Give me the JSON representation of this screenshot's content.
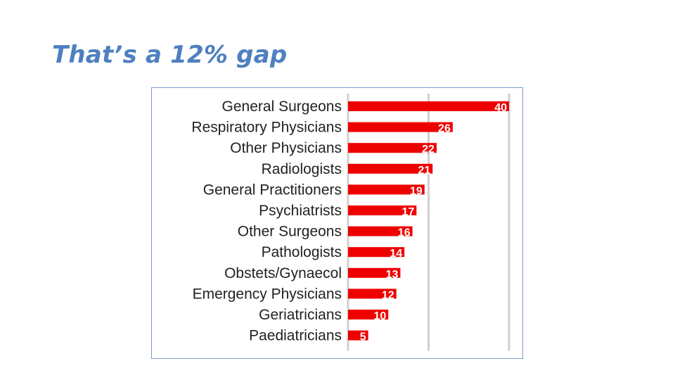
{
  "slide": {
    "title": "That’s a 12% gap"
  },
  "colors": {
    "title": "#4f7fc0",
    "bar": "#ee0000",
    "grid": "#d0d0d0",
    "frame": "#7c9ac8"
  },
  "chart_data": {
    "type": "bar",
    "orientation": "horizontal",
    "title": "",
    "xlabel": "",
    "ylabel": "",
    "xlim": [
      0,
      40
    ],
    "grid": true,
    "categories": [
      "General Surgeons",
      "Respiratory Physicians",
      "Other Physicians",
      "Radiologists",
      "General Practitioners",
      "Psychiatrists",
      "Other Surgeons",
      "Pathologists",
      "Obstets/Gynaecol",
      "Emergency Physicians",
      "Geriatricians",
      "Paediatricians"
    ],
    "values": [
      40,
      26,
      22,
      21,
      19,
      17,
      16,
      14,
      13,
      12,
      10,
      5
    ],
    "data_labels": [
      "40",
      "26",
      "22",
      "21",
      "19",
      "17",
      "16",
      "14",
      "13",
      "12",
      "10",
      "5"
    ]
  }
}
